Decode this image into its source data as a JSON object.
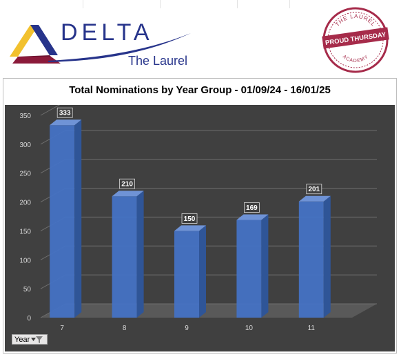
{
  "header": {
    "brand_name": "DELTA",
    "brand_sub": "The Laurel",
    "badge_top": "THE LAUREL",
    "badge_band": "PROUD THURSDAY",
    "badge_bottom": "ACADEMY"
  },
  "filter": {
    "label": "Year"
  },
  "colors": {
    "bar": "#4472c4",
    "plot_bg": "#404040",
    "brand": "#27348b",
    "badge": "#a62b4a"
  },
  "chart_data": {
    "type": "bar",
    "title": "Total Nominations by Year Group - 01/09/24 - 16/01/25",
    "categories": [
      "7",
      "8",
      "9",
      "10",
      "11"
    ],
    "values": [
      333,
      210,
      150,
      169,
      201
    ],
    "ylim": [
      0,
      350
    ],
    "yticks": [
      0,
      50,
      100,
      150,
      200,
      250,
      300,
      350
    ],
    "data_labels": true,
    "grid": true
  }
}
